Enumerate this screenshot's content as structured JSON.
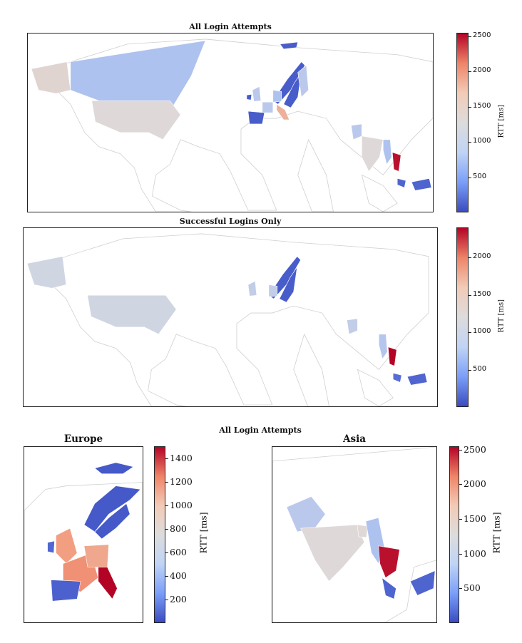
{
  "chart_data": [
    {
      "type": "choropleth",
      "title": "All Login Attempts",
      "colorbar": {
        "label": "RTT [ms]",
        "range": [
          0,
          2550
        ],
        "ticks": [
          "2500",
          "2000",
          "1500",
          "1000",
          "500"
        ]
      },
      "regions": [
        {
          "name": "Alaska",
          "rtt": 1350
        },
        {
          "name": "Canada",
          "rtt": 900
        },
        {
          "name": "United States",
          "rtt": 1300
        },
        {
          "name": "Svalbard",
          "rtt": 100
        },
        {
          "name": "Norway",
          "rtt": 100
        },
        {
          "name": "Sweden",
          "rtt": 100
        },
        {
          "name": "Finland",
          "rtt": 1000
        },
        {
          "name": "United Kingdom",
          "rtt": 1000
        },
        {
          "name": "Ireland",
          "rtt": 100
        },
        {
          "name": "Germany",
          "rtt": 900
        },
        {
          "name": "France",
          "rtt": 1000
        },
        {
          "name": "Spain",
          "rtt": 100
        },
        {
          "name": "Italy",
          "rtt": 1700
        },
        {
          "name": "Pakistan",
          "rtt": 1000
        },
        {
          "name": "India",
          "rtt": 1300
        },
        {
          "name": "Myanmar",
          "rtt": 900
        },
        {
          "name": "Thailand",
          "rtt": 2500
        },
        {
          "name": "Malaysia",
          "rtt": 150
        },
        {
          "name": "Indonesia",
          "rtt": 150
        }
      ]
    },
    {
      "type": "choropleth",
      "title": "Successful Logins Only",
      "colorbar": {
        "label": "RTT [ms]",
        "range": [
          0,
          2400
        ],
        "ticks": [
          "2000",
          "1500",
          "1000",
          "500"
        ]
      },
      "regions": [
        {
          "name": "Alaska",
          "rtt": 1100
        },
        {
          "name": "United States",
          "rtt": 1100
        },
        {
          "name": "Norway",
          "rtt": 100
        },
        {
          "name": "Sweden",
          "rtt": 100
        },
        {
          "name": "United Kingdom",
          "rtt": 1000
        },
        {
          "name": "Germany",
          "rtt": 1000
        },
        {
          "name": "Pakistan",
          "rtt": 1000
        },
        {
          "name": "Myanmar",
          "rtt": 900
        },
        {
          "name": "Thailand",
          "rtt": 2400
        },
        {
          "name": "Malaysia",
          "rtt": 200
        },
        {
          "name": "Indonesia",
          "rtt": 150
        }
      ]
    },
    {
      "type": "choropleth",
      "title": "Europe",
      "colorbar": {
        "label": "RTT [ms]",
        "range": [
          0,
          1500
        ],
        "ticks": [
          "1400",
          "1200",
          "1000",
          "800",
          "600",
          "400",
          "200"
        ]
      },
      "regions": [
        {
          "name": "Svalbard",
          "rtt": 50
        },
        {
          "name": "Norway",
          "rtt": 50
        },
        {
          "name": "Sweden",
          "rtt": 50
        },
        {
          "name": "United Kingdom",
          "rtt": 1100
        },
        {
          "name": "Ireland",
          "rtt": 100
        },
        {
          "name": "France",
          "rtt": 1150
        },
        {
          "name": "Germany",
          "rtt": 1050
        },
        {
          "name": "Spain",
          "rtt": 80
        },
        {
          "name": "Italy",
          "rtt": 1500
        }
      ]
    },
    {
      "type": "choropleth",
      "title": "Asia",
      "colorbar": {
        "label": "RTT [ms]",
        "range": [
          0,
          2550
        ],
        "ticks": [
          "2500",
          "2000",
          "1500",
          "1000",
          "500"
        ]
      },
      "regions": [
        {
          "name": "Pakistan",
          "rtt": 1000
        },
        {
          "name": "India",
          "rtt": 1300
        },
        {
          "name": "Bangladesh",
          "rtt": 1300
        },
        {
          "name": "Myanmar",
          "rtt": 900
        },
        {
          "name": "Thailand",
          "rtt": 2500
        },
        {
          "name": "Malaysia",
          "rtt": 150
        },
        {
          "name": "Indonesia",
          "rtt": 150
        }
      ]
    }
  ],
  "group_title": "All Login Attempts"
}
